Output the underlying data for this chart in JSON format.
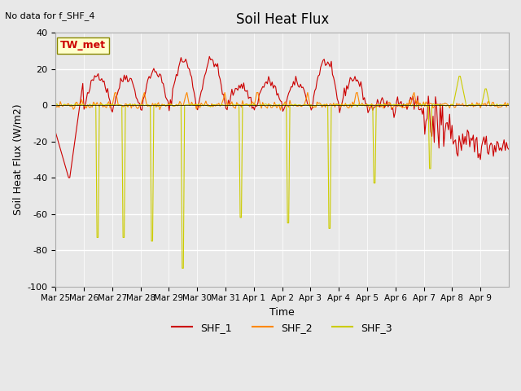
{
  "title": "Soil Heat Flux",
  "subtitle": "No data for f_SHF_4",
  "ylabel": "Soil Heat Flux (W/m2)",
  "xlabel": "Time",
  "station_label": "TW_met",
  "ylim": [
    -100,
    40
  ],
  "yticks": [
    -100,
    -80,
    -60,
    -40,
    -20,
    0,
    20,
    40
  ],
  "xtick_labels": [
    "Mar 25",
    "Mar 26",
    "Mar 27",
    "Mar 28",
    "Mar 29",
    "Mar 30",
    "Mar 31",
    "Apr 1",
    "Apr 2",
    "Apr 3",
    "Apr 4",
    "Apr 5",
    "Apr 6",
    "Apr 7",
    "Apr 8",
    "Apr 9"
  ],
  "shf1_color": "#cc0000",
  "shf2_color": "#ff8800",
  "shf3_color": "#cccc00",
  "bg_color": "#e8e8e8"
}
